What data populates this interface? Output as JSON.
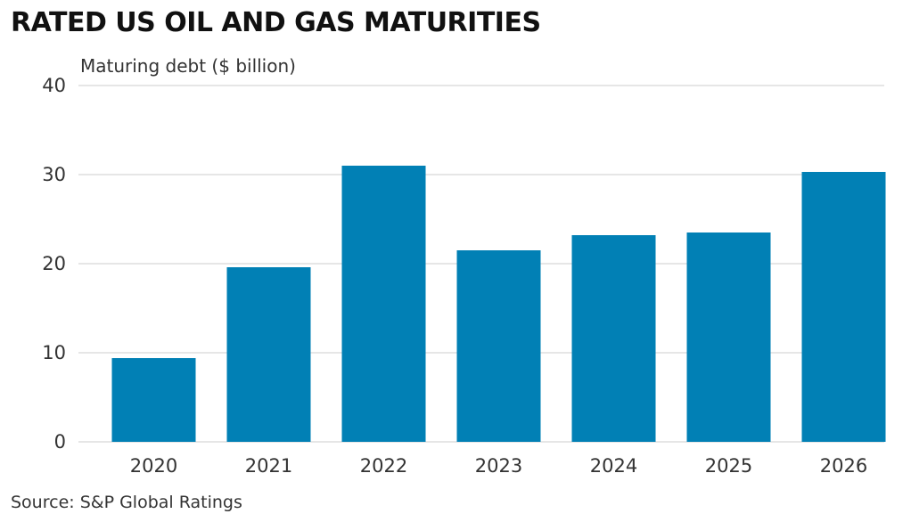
{
  "chart_data": {
    "type": "bar",
    "title": "RATED US OIL AND GAS MATURITIES",
    "ylabel": "Maturing debt ($ billion)",
    "xlabel": "",
    "categories": [
      "2020",
      "2021",
      "2022",
      "2023",
      "2024",
      "2025",
      "2026"
    ],
    "values": [
      9.4,
      19.6,
      31.0,
      21.5,
      23.2,
      23.5,
      30.3
    ],
    "ylim": [
      0,
      40
    ],
    "yticks": [
      "0",
      "10",
      "20",
      "30",
      "40"
    ],
    "grid": true,
    "bar_color": "#0180b5",
    "grid_color": "#e6e6e6"
  },
  "source": "Source: S&P Global Ratings"
}
